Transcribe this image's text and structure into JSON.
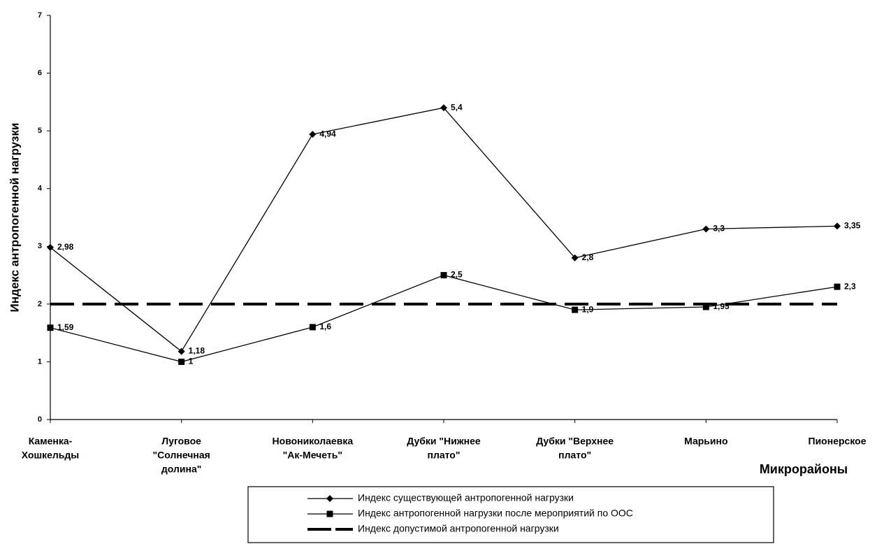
{
  "chart_data": {
    "type": "line",
    "y_label": "Индекс антропогенной нагрузки",
    "x_label": "Микрорайоны",
    "categories": [
      [
        "Каменка-",
        "Хошкельды"
      ],
      [
        "Луговое",
        "\"Солнечная",
        "долина\""
      ],
      [
        "Новониколаевка",
        "\"Ак-Мечеть\""
      ],
      [
        "Дубки \"Нижнее",
        "плато\""
      ],
      [
        "Дубки \"Верхнее",
        "плато\""
      ],
      [
        "Марьино"
      ],
      [
        "Пионерское"
      ]
    ],
    "series": [
      {
        "name": "Индекс существующей антропогенной нагрузки",
        "color": "#000000",
        "marker": "diamond",
        "dash": false,
        "values": [
          2.98,
          1.18,
          4.94,
          5.4,
          2.8,
          3.3,
          3.35
        ],
        "value_labels": [
          "2,98",
          "1,18",
          "4,94",
          "5,4",
          "2,8",
          "3,3",
          "3,35"
        ]
      },
      {
        "name": "Индекс антропогенной нагрузки после мероприятий по ООС",
        "color": "#000000",
        "marker": "square",
        "dash": false,
        "values": [
          1.59,
          1,
          1.6,
          2.5,
          1.9,
          1.95,
          2.3
        ],
        "value_labels": [
          "1,59",
          "1",
          "1,6",
          "2,5",
          "1,9",
          "1,95",
          "2,3"
        ]
      },
      {
        "name": "Индекс допустимой антропогенной нагрузки",
        "color": "#000000",
        "marker": "none",
        "dash": true,
        "values": [
          2,
          2,
          2,
          2,
          2,
          2,
          2
        ]
      }
    ],
    "ylim": [
      0,
      7
    ],
    "yticks": [
      0,
      1,
      2,
      3,
      4,
      5,
      6,
      7
    ],
    "grid": false,
    "legend": "bottom"
  }
}
